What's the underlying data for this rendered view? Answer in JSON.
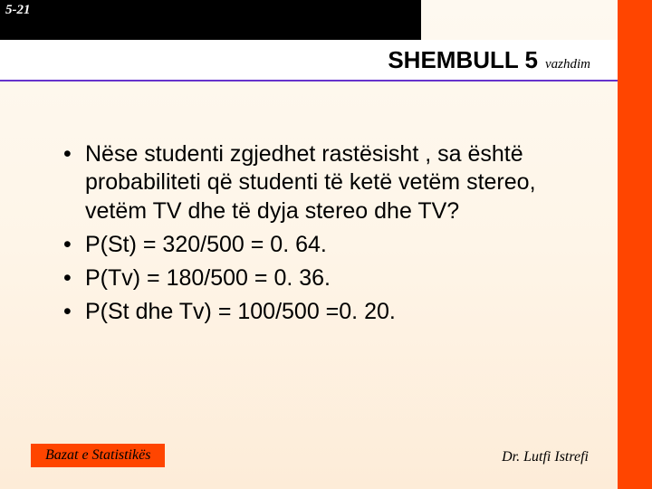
{
  "page_number": "5-21",
  "title": {
    "main": "SHEMBULL 5",
    "sub": "vazhdim"
  },
  "bullets": [
    "Nëse studenti zgjedhet rastësisht , sa është probabiliteti që studenti të ketë vetëm stereo, vetëm TV dhe të dyja stereo dhe TV?",
    "P(St) = 320/500 = 0. 64.",
    "P(Tv) = 180/500 = 0. 36.",
    "P(St dhe Tv) = 100/500 =0. 20."
  ],
  "footer": {
    "left": "Bazat e Statistikës",
    "right": "Dr. Lutfi Istrefi"
  },
  "colors": {
    "accent": "#ff4500",
    "title_underline": "#6633cc",
    "bg_top": "#fef9f0",
    "bg_bottom": "#fdecd8"
  }
}
